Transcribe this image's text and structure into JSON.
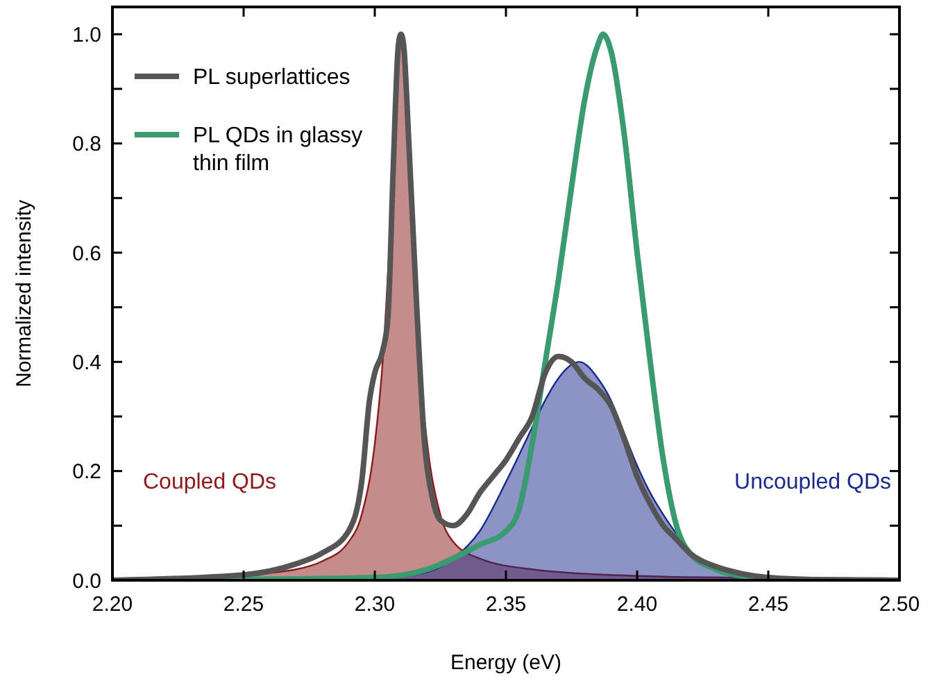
{
  "chart_data": {
    "type": "line",
    "xlabel": "Energy (eV)",
    "ylabel": "Normalized intensity",
    "xlim": [
      2.2,
      2.5
    ],
    "ylim": [
      0,
      1.05
    ],
    "xticks": [
      {
        "value": 2.2,
        "label": "2.20"
      },
      2.25,
      {
        "value": 2.3,
        "label": "2.30"
      },
      2.35,
      {
        "value": 2.4,
        "label": "2.40"
      },
      2.45,
      {
        "value": 2.5,
        "label": "2.50"
      }
    ],
    "yticks": [
      {
        "value": 0,
        "label": "0.0"
      },
      {
        "value": 0.1,
        "label": null
      },
      0.2,
      {
        "value": 0.3,
        "label": null
      },
      0.4,
      {
        "value": 0.5,
        "label": null
      },
      0.6,
      {
        "value": 0.7,
        "label": null
      },
      0.8,
      {
        "value": 0.9,
        "label": null
      },
      {
        "value": 1,
        "label": "1.0"
      }
    ],
    "legend": "top left",
    "series": [
      {
        "name": "Coupled QDs",
        "type": "area",
        "color": "#8b1a1a",
        "x": [
          2.2,
          2.25,
          2.27,
          2.28,
          2.29,
          2.295,
          2.3,
          2.303,
          2.306,
          2.308,
          2.31,
          2.312,
          2.314,
          2.317,
          2.32,
          2.325,
          2.33,
          2.34,
          2.36,
          2.4,
          2.45,
          2.5
        ],
        "values": [
          0.003,
          0.01,
          0.02,
          0.035,
          0.07,
          0.12,
          0.25,
          0.4,
          0.65,
          0.85,
          0.98,
          0.85,
          0.65,
          0.4,
          0.25,
          0.12,
          0.07,
          0.04,
          0.02,
          0.008,
          0.004,
          0.002
        ]
      },
      {
        "name": "Uncoupled QDs",
        "type": "area",
        "color": "#1a2a8c",
        "x": [
          2.2,
          2.3,
          2.32,
          2.33,
          2.34,
          2.35,
          2.36,
          2.365,
          2.37,
          2.375,
          2.378,
          2.385,
          2.39,
          2.395,
          2.4,
          2.405,
          2.41,
          2.415,
          2.42,
          2.43,
          2.44,
          2.46,
          2.5
        ],
        "values": [
          0,
          0.003,
          0.015,
          0.04,
          0.09,
          0.18,
          0.28,
          0.33,
          0.37,
          0.395,
          0.4,
          0.37,
          0.33,
          0.27,
          0.21,
          0.16,
          0.12,
          0.085,
          0.055,
          0.025,
          0.01,
          0.003,
          0
        ]
      },
      {
        "name": "PL superlattices",
        "color": "#555555",
        "x": [
          2.2,
          2.25,
          2.27,
          2.28,
          2.29,
          2.295,
          2.298,
          2.3,
          2.303,
          2.305,
          2.307,
          2.309,
          2.31,
          2.311,
          2.313,
          2.316,
          2.319,
          2.322,
          2.325,
          2.33,
          2.335,
          2.34,
          2.345,
          2.35,
          2.355,
          2.36,
          2.365,
          2.37,
          2.375,
          2.38,
          2.385,
          2.39,
          2.395,
          2.4,
          2.405,
          2.41,
          2.415,
          2.42,
          2.43,
          2.44,
          2.45,
          2.47,
          2.5
        ],
        "values": [
          0,
          0.01,
          0.03,
          0.05,
          0.09,
          0.18,
          0.33,
          0.38,
          0.42,
          0.48,
          0.75,
          0.98,
          1.0,
          0.98,
          0.8,
          0.5,
          0.25,
          0.15,
          0.11,
          0.1,
          0.12,
          0.16,
          0.19,
          0.22,
          0.26,
          0.3,
          0.38,
          0.41,
          0.4,
          0.37,
          0.35,
          0.32,
          0.26,
          0.19,
          0.14,
          0.1,
          0.075,
          0.05,
          0.025,
          0.012,
          0.005,
          0.001,
          0
        ]
      },
      {
        "name": "PL QDs in glassy thin film",
        "color": "#3a9a70",
        "x": [
          2.2,
          2.3,
          2.32,
          2.34,
          2.35,
          2.355,
          2.36,
          2.365,
          2.37,
          2.375,
          2.38,
          2.385,
          2.387,
          2.39,
          2.395,
          2.4,
          2.405,
          2.41,
          2.415,
          2.42,
          2.43,
          2.44,
          2.46,
          2.5
        ],
        "values": [
          0,
          0.005,
          0.02,
          0.065,
          0.09,
          0.13,
          0.25,
          0.4,
          0.55,
          0.72,
          0.88,
          0.98,
          1.0,
          0.97,
          0.82,
          0.6,
          0.4,
          0.22,
          0.1,
          0.05,
          0.02,
          0.008,
          0.002,
          0
        ]
      }
    ]
  }
}
